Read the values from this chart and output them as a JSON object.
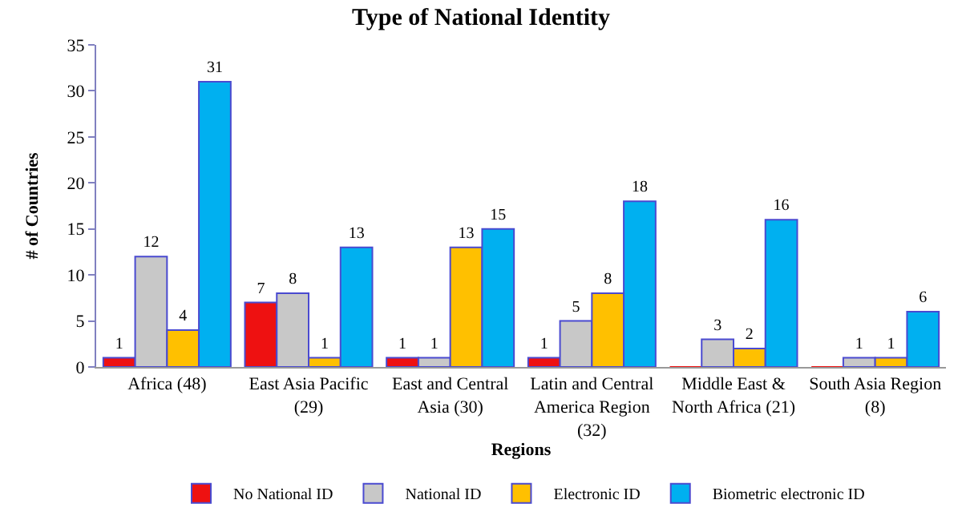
{
  "chart_data": {
    "type": "bar",
    "title": "Type of National Identity",
    "xlabel": "Regions",
    "ylabel": "# of Countries",
    "categories": [
      "Africa (48)",
      "East Asia Pacific (29)",
      "East and Central Asia (30)",
      "Latin and Central America Region (32)",
      "Middle East & North Africa (21)",
      "South Asia Region (8)"
    ],
    "series": [
      {
        "name": "No National ID",
        "color": "#ee1111",
        "values": [
          1,
          7,
          1,
          1,
          0,
          0
        ],
        "value_labels": [
          "1",
          "7",
          "1",
          "1",
          null,
          null
        ]
      },
      {
        "name": "National ID",
        "color": "#c8c8c8",
        "values": [
          12,
          8,
          1,
          5,
          3,
          1
        ],
        "value_labels": [
          "12",
          "8",
          "1",
          "5",
          "3",
          "1"
        ]
      },
      {
        "name": "Electronic ID",
        "color": "#ffc000",
        "values": [
          4,
          1,
          13,
          8,
          2,
          1
        ],
        "value_labels": [
          "4",
          "1",
          "13",
          "8",
          "2",
          "1"
        ]
      },
      {
        "name": "Biometric electronic ID",
        "color": "#00b0f0",
        "values": [
          31,
          13,
          15,
          18,
          16,
          6
        ],
        "value_labels": [
          "31",
          "13",
          "15",
          "18",
          "16",
          "6"
        ]
      }
    ],
    "ylim": [
      0,
      35
    ],
    "yticks": [
      0,
      5,
      10,
      15,
      20,
      25,
      30,
      35
    ],
    "grid": false,
    "legend": "bottom"
  }
}
